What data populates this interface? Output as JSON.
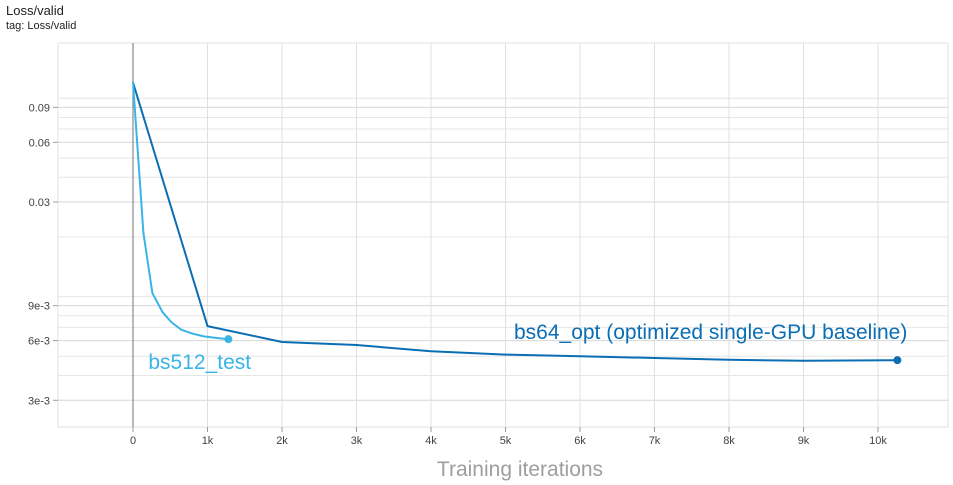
{
  "chart_data": {
    "type": "line",
    "title": "Loss/valid",
    "subtitle": "tag: Loss/valid",
    "xlabel": "Training iterations",
    "ylabel": "",
    "yscale": "log",
    "xlim": [
      -1000,
      11000
    ],
    "ylim": [
      0.0022,
      0.19
    ],
    "grid": true,
    "x_ticks": [
      0,
      1000,
      2000,
      3000,
      4000,
      5000,
      6000,
      7000,
      8000,
      9000,
      10000
    ],
    "x_tick_labels": [
      "0",
      "1k",
      "2k",
      "3k",
      "4k",
      "5k",
      "6k",
      "7k",
      "8k",
      "9k",
      "10k"
    ],
    "y_ticks": [
      0.003,
      0.006,
      0.009,
      0.03,
      0.06,
      0.09
    ],
    "y_tick_labels": [
      "3e-3",
      "6e-3",
      "9e-3",
      "0.03",
      "0.06",
      "0.09"
    ],
    "y_minor_ticks": [
      0.004,
      0.005,
      0.007,
      0.008,
      0.01,
      0.02,
      0.04,
      0.05,
      0.07,
      0.08,
      0.1
    ],
    "series": [
      {
        "name": "bs64_opt (optimized single-GPU baseline)",
        "color": "#0b6eb4",
        "x": [
          0,
          1000,
          2000,
          3000,
          4000,
          5000,
          6000,
          7000,
          8000,
          9000,
          10260
        ],
        "y": [
          0.12,
          0.0071,
          0.0059,
          0.0057,
          0.0053,
          0.0051,
          0.005,
          0.0049,
          0.0048,
          0.00475,
          0.00478
        ]
      },
      {
        "name": "bs512_test",
        "color": "#38b5e6",
        "x": [
          0,
          140,
          260,
          400,
          520,
          650,
          800,
          950,
          1100,
          1280
        ],
        "y": [
          0.12,
          0.021,
          0.0104,
          0.0083,
          0.0074,
          0.0068,
          0.0065,
          0.0063,
          0.0062,
          0.0061
        ]
      }
    ]
  }
}
